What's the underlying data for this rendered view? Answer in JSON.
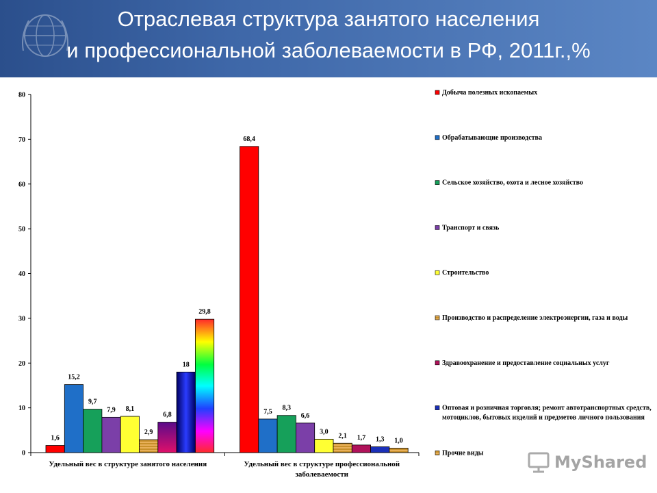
{
  "header": {
    "title_line1": "Отраслевая структура занятого населения",
    "title_line2": "и профессиональной заболеваемости в РФ, 2011г.,%"
  },
  "watermark": {
    "brand": "MyShared"
  },
  "chart_data": {
    "type": "bar",
    "ylim": [
      0,
      80
    ],
    "yticks": [
      0,
      10,
      20,
      30,
      40,
      50,
      60,
      70,
      80
    ],
    "categories": [
      "Удельный вес в структуре занятого населения",
      "Удельный вес в структуре профессиональной заболеваемости"
    ],
    "category_lines": [
      [
        "Удельный вес в структуре занятого населения"
      ],
      [
        "Удельный вес в структуре профессиональной",
        "заболеваемости"
      ]
    ],
    "legend_position": "right",
    "series": [
      {
        "name": "Добыча полезных ископаемых",
        "values": [
          1.6,
          68.4
        ],
        "labels": [
          "1,6",
          "68,4"
        ],
        "color": "#ff0000"
      },
      {
        "name": "Обрабатывающие производства",
        "values": [
          15.2,
          7.5
        ],
        "labels": [
          "15,2",
          "7,5"
        ],
        "color": "#1f6fc8"
      },
      {
        "name": "Сельское хозяйство, охота и лесное хозяйство",
        "values": [
          9.7,
          8.3
        ],
        "labels": [
          "9,7",
          "8,3"
        ],
        "color": "#16a05a"
      },
      {
        "name": "Транспорт и связь",
        "values": [
          7.9,
          6.6
        ],
        "labels": [
          "7,9",
          "6,6"
        ],
        "color": "#7b3fa8"
      },
      {
        "name": "Строительство",
        "values": [
          8.1,
          3.0
        ],
        "labels": [
          "8,1",
          "3,0"
        ],
        "color": "#ffff33"
      },
      {
        "name": "Производство и распределение электроэнергии, газа и воды",
        "values": [
          2.9,
          2.1
        ],
        "labels": [
          "2,9",
          "2,1"
        ],
        "color": "#c8902a"
      },
      {
        "name": "Здравоохранение и предоставление социальных услуг",
        "values": [
          6.8,
          1.7
        ],
        "labels": [
          "6,8",
          "1,7"
        ],
        "color": "#b0125a"
      },
      {
        "name": "Оптовая и розничная торговля; ремонт автотранспортных средств, мотоциклов, бытовых изделий и предметов личного пользования",
        "values": [
          18,
          1.3
        ],
        "labels": [
          "18",
          "1,3"
        ],
        "color": "#1a2fb8"
      },
      {
        "name": "Прочие виды",
        "values": [
          29.8,
          1.0
        ],
        "labels": [
          "29,8",
          "1,0"
        ],
        "color": "#c89a40"
      }
    ]
  }
}
